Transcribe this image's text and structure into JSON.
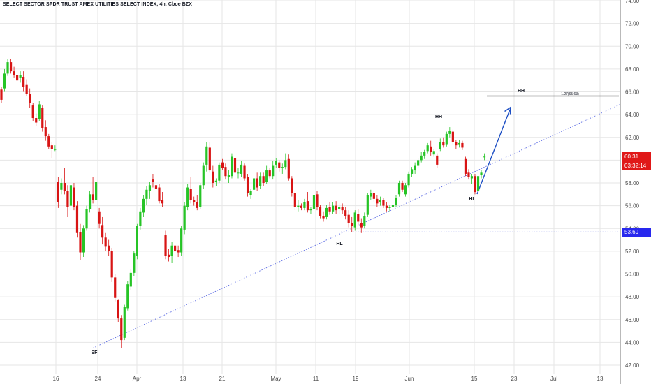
{
  "header": {
    "title": "SELECT SECTOR SPDR TRUST AMEX UTILITIES SELECT INDEX, 4h, Cboe BZX"
  },
  "price_axis": {
    "ticks": [
      "74.00",
      "72.00",
      "70.00",
      "68.00",
      "66.00",
      "64.00",
      "62.00",
      "60.00",
      "58.00",
      "56.00",
      "54.00",
      "52.00",
      "50.00",
      "48.00",
      "46.00",
      "44.00",
      "42.00"
    ]
  },
  "time_axis": {
    "ticks": [
      "16",
      "24",
      "Apr",
      "13",
      "21",
      "May",
      "11",
      "19",
      "Jun",
      "15",
      "23",
      "Jul",
      "13"
    ]
  },
  "badges": {
    "last_price": "60.31",
    "countdown": "03:32:14",
    "level": "53.69"
  },
  "annotations": {
    "sf": "SF",
    "hl_may": "HL",
    "hh_jun": "HH",
    "hl_jun": "HL",
    "hh_target": "HH",
    "fib": "1.27(65.63)"
  },
  "colors": {
    "up": "#26c426",
    "down": "#d81414",
    "badge_red": "#e01818",
    "badge_blue": "#2828ee",
    "trendline": "#4a5be0",
    "arrow": "#1d4fc4",
    "grid": "#e6e6e6"
  },
  "chart_data": {
    "type": "candlestick",
    "title": "SELECT SECTOR SPDR TRUST AMEX UTILITIES SELECT INDEX, 4h, Cboe BZX",
    "interval": "4h",
    "ylim": [
      41.5,
      74.8
    ],
    "price_ticks": [
      74,
      72,
      70,
      68,
      66,
      64,
      62,
      60,
      58,
      56,
      54,
      52,
      50,
      48,
      46,
      44,
      42
    ],
    "x_ticks": [
      "16",
      "24",
      "Apr",
      "13",
      "21",
      "May",
      "11",
      "19",
      "Jun",
      "15",
      "23",
      "Jul",
      "13"
    ],
    "candles": [
      [
        66.2,
        66.4,
        65.0,
        65.3
      ],
      [
        66.3,
        68.0,
        66.0,
        67.6
      ],
      [
        67.6,
        68.9,
        67.4,
        68.6
      ],
      [
        68.6,
        68.9,
        67.6,
        67.8
      ],
      [
        67.8,
        68.2,
        67.2,
        67.5
      ],
      [
        67.5,
        67.9,
        66.6,
        67.0
      ],
      [
        67.2,
        67.8,
        66.8,
        67.5
      ],
      [
        67.3,
        67.8,
        66.0,
        66.4
      ],
      [
        66.6,
        67.1,
        65.6,
        65.8
      ],
      [
        65.8,
        66.3,
        64.6,
        65.0
      ],
      [
        64.8,
        65.0,
        63.4,
        63.7
      ],
      [
        63.7,
        64.1,
        63.0,
        63.3
      ],
      [
        63.6,
        65.2,
        63.4,
        64.9
      ],
      [
        64.6,
        64.8,
        62.5,
        62.8
      ],
      [
        62.9,
        63.5,
        61.7,
        62.1
      ],
      [
        62.1,
        62.3,
        61.0,
        61.2
      ],
      [
        61.3,
        61.6,
        60.2,
        61.0
      ],
      [
        60.9,
        61.3,
        60.8,
        61.0
      ],
      [
        58.1,
        58.5,
        55.8,
        56.3
      ],
      [
        57.4,
        58.4,
        57.0,
        58.0
      ],
      [
        58.0,
        59.3,
        57.0,
        57.3
      ],
      [
        57.3,
        57.8,
        55.0,
        55.9
      ],
      [
        56.0,
        58.1,
        55.6,
        57.8
      ],
      [
        57.6,
        58.0,
        55.6,
        55.9
      ],
      [
        56.0,
        56.4,
        53.2,
        53.6
      ],
      [
        53.7,
        54.4,
        51.2,
        51.9
      ],
      [
        51.9,
        54.3,
        51.5,
        54.0
      ],
      [
        54.0,
        56.0,
        53.8,
        55.7
      ],
      [
        55.7,
        57.3,
        55.4,
        57.0
      ],
      [
        57.0,
        58.5,
        56.2,
        56.5
      ],
      [
        56.5,
        58.4,
        56.0,
        58.1
      ],
      [
        55.5,
        55.8,
        54.0,
        54.4
      ],
      [
        54.3,
        55.0,
        52.6,
        53.2
      ],
      [
        53.2,
        53.6,
        52.0,
        52.4
      ],
      [
        52.5,
        53.0,
        51.6,
        52.0
      ],
      [
        52.0,
        52.3,
        49.3,
        49.7
      ],
      [
        49.7,
        50.0,
        47.6,
        47.9
      ],
      [
        47.7,
        47.8,
        45.8,
        46.1
      ],
      [
        46.1,
        46.4,
        43.5,
        44.2
      ],
      [
        44.4,
        47.3,
        44.2,
        47.1
      ],
      [
        47.0,
        49.4,
        46.8,
        49.1
      ],
      [
        48.9,
        50.4,
        48.6,
        50.1
      ],
      [
        50.1,
        52.0,
        49.8,
        51.8
      ],
      [
        51.6,
        54.4,
        51.3,
        54.2
      ],
      [
        54.2,
        55.8,
        53.9,
        55.5
      ],
      [
        55.4,
        56.9,
        55.0,
        56.6
      ],
      [
        56.6,
        57.7,
        56.1,
        57.4
      ],
      [
        57.3,
        58.1,
        56.6,
        57.8
      ],
      [
        58.3,
        58.8,
        57.6,
        58.1
      ],
      [
        57.8,
        58.2,
        57.2,
        57.5
      ],
      [
        57.6,
        57.9,
        56.2,
        56.4
      ],
      [
        56.5,
        57.2,
        55.9,
        56.2
      ],
      [
        53.4,
        53.8,
        51.3,
        51.6
      ],
      [
        51.7,
        52.2,
        51.1,
        51.5
      ],
      [
        51.6,
        52.8,
        51.0,
        52.5
      ],
      [
        52.5,
        53.2,
        51.8,
        52.0
      ],
      [
        52.1,
        52.5,
        51.5,
        51.9
      ],
      [
        51.9,
        54.2,
        51.6,
        54.0
      ],
      [
        53.9,
        56.3,
        53.5,
        56.0
      ],
      [
        55.9,
        57.9,
        55.6,
        57.6
      ],
      [
        57.5,
        58.5,
        56.2,
        56.5
      ],
      [
        56.5,
        56.8,
        56.0,
        56.3
      ],
      [
        56.3,
        56.9,
        55.6,
        55.8
      ],
      [
        55.9,
        58.0,
        55.7,
        57.8
      ],
      [
        57.8,
        59.8,
        57.5,
        59.5
      ],
      [
        59.6,
        61.6,
        59.0,
        61.2
      ],
      [
        61.1,
        61.6,
        58.9,
        59.1
      ],
      [
        59.0,
        59.5,
        57.6,
        58.0
      ],
      [
        58.1,
        58.4,
        57.7,
        58.2
      ],
      [
        58.2,
        59.8,
        58.0,
        59.6
      ],
      [
        59.8,
        60.1,
        59.1,
        59.3
      ],
      [
        59.4,
        59.7,
        58.3,
        58.6
      ],
      [
        58.5,
        59.1,
        58.0,
        58.7
      ],
      [
        58.6,
        60.6,
        58.4,
        60.3
      ],
      [
        60.2,
        60.5,
        58.7,
        58.9
      ],
      [
        58.9,
        59.3,
        58.4,
        58.9
      ],
      [
        58.8,
        59.9,
        58.5,
        59.6
      ],
      [
        59.5,
        59.7,
        58.2,
        58.4
      ],
      [
        58.5,
        58.8,
        56.8,
        57.1
      ],
      [
        56.9,
        57.5,
        56.6,
        57.3
      ],
      [
        57.4,
        58.6,
        57.2,
        58.4
      ],
      [
        58.4,
        58.9,
        57.3,
        57.6
      ],
      [
        57.7,
        58.9,
        57.5,
        58.6
      ],
      [
        58.6,
        58.9,
        57.7,
        58.0
      ],
      [
        58.1,
        59.5,
        57.9,
        59.1
      ],
      [
        59.1,
        59.3,
        58.4,
        58.6
      ],
      [
        58.6,
        59.9,
        58.3,
        59.5
      ],
      [
        59.6,
        60.2,
        59.3,
        59.9
      ],
      [
        59.8,
        60.0,
        59.0,
        59.3
      ],
      [
        59.3,
        59.7,
        58.8,
        59.4
      ],
      [
        59.4,
        60.6,
        59.2,
        60.0
      ],
      [
        60.1,
        60.5,
        58.2,
        58.4
      ],
      [
        58.4,
        58.6,
        56.8,
        57.1
      ],
      [
        57.1,
        57.3,
        55.6,
        55.9
      ],
      [
        55.9,
        56.5,
        55.5,
        56.0
      ],
      [
        56.0,
        56.2,
        55.6,
        55.8
      ],
      [
        55.8,
        56.6,
        55.6,
        56.3
      ],
      [
        56.4,
        57.2,
        55.4,
        55.6
      ],
      [
        55.6,
        55.9,
        55.3,
        55.7
      ],
      [
        55.7,
        57.2,
        55.5,
        56.9
      ],
      [
        57.0,
        57.3,
        55.6,
        55.9
      ],
      [
        55.9,
        56.1,
        54.9,
        55.1
      ],
      [
        55.1,
        55.5,
        54.6,
        54.9
      ],
      [
        55.0,
        56.1,
        54.8,
        55.8
      ],
      [
        55.9,
        56.3,
        55.2,
        55.5
      ],
      [
        55.5,
        56.3,
        55.3,
        56.0
      ],
      [
        56.0,
        56.4,
        55.3,
        55.6
      ],
      [
        55.7,
        56.2,
        55.3,
        55.9
      ],
      [
        55.9,
        56.2,
        55.3,
        55.6
      ],
      [
        55.6,
        55.9,
        54.8,
        55.1
      ],
      [
        55.2,
        55.6,
        54.1,
        54.5
      ],
      [
        54.5,
        55.0,
        53.7,
        54.2
      ],
      [
        54.1,
        55.6,
        53.8,
        55.4
      ],
      [
        55.3,
        55.7,
        54.3,
        54.6
      ],
      [
        54.5,
        54.9,
        53.6,
        54.1
      ],
      [
        54.2,
        55.4,
        54.0,
        55.1
      ],
      [
        55.2,
        57.1,
        55.0,
        56.9
      ],
      [
        56.8,
        57.4,
        56.5,
        57.1
      ],
      [
        57.1,
        57.3,
        56.3,
        56.6
      ],
      [
        56.6,
        56.9,
        55.9,
        56.2
      ],
      [
        56.3,
        56.8,
        56.0,
        56.5
      ],
      [
        56.5,
        56.7,
        55.8,
        56.0
      ],
      [
        56.0,
        56.3,
        55.5,
        55.8
      ],
      [
        55.8,
        56.1,
        55.5,
        55.9
      ],
      [
        55.9,
        56.4,
        55.7,
        56.1
      ],
      [
        56.1,
        56.9,
        55.9,
        56.7
      ],
      [
        57.0,
        58.2,
        56.8,
        58.0
      ],
      [
        58.0,
        58.2,
        57.2,
        57.4
      ],
      [
        57.0,
        58.0,
        56.8,
        57.8
      ],
      [
        57.8,
        59.0,
        57.6,
        58.8
      ],
      [
        58.8,
        59.4,
        58.5,
        59.2
      ],
      [
        59.1,
        59.8,
        58.8,
        59.5
      ],
      [
        59.5,
        60.2,
        59.3,
        60.0
      ],
      [
        60.0,
        60.7,
        59.8,
        60.4
      ],
      [
        60.4,
        60.9,
        60.1,
        60.7
      ],
      [
        60.8,
        61.5,
        60.6,
        61.3
      ],
      [
        61.2,
        61.7,
        60.4,
        60.7
      ],
      [
        60.5,
        61.0,
        60.3,
        60.8
      ],
      [
        60.4,
        60.6,
        59.3,
        59.6
      ],
      [
        61.0,
        61.9,
        60.8,
        61.6
      ],
      [
        61.6,
        62.0,
        61.1,
        61.3
      ],
      [
        61.4,
        62.5,
        61.2,
        62.3
      ],
      [
        62.3,
        62.9,
        62.0,
        62.6
      ],
      [
        62.5,
        62.7,
        61.4,
        61.6
      ],
      [
        61.6,
        61.8,
        61.0,
        61.3
      ],
      [
        61.4,
        61.8,
        61.1,
        61.5
      ],
      [
        61.5,
        61.7,
        60.9,
        61.1
      ],
      [
        60.1,
        60.3,
        58.6,
        58.8
      ],
      [
        58.9,
        59.2,
        58.3,
        58.5
      ],
      [
        58.4,
        58.8,
        57.9,
        58.6
      ],
      [
        58.6,
        58.8,
        57.0,
        57.2
      ],
      [
        57.3,
        58.9,
        57.1,
        58.6
      ],
      [
        58.7,
        59.1,
        58.4,
        58.9
      ],
      [
        60.3,
        60.6,
        60.0,
        60.31
      ]
    ],
    "annotations": [
      {
        "text": "SF",
        "price": 43.5
      },
      {
        "text": "HL",
        "price": 53.7
      },
      {
        "text": "HH",
        "price": 62.9
      },
      {
        "text": "HL",
        "price": 57.1
      },
      {
        "text": "HH",
        "price": 65.63
      },
      {
        "text": "1.27(65.63)",
        "price": 65.63
      }
    ],
    "horizontal_levels": [
      {
        "price": 53.69,
        "style": "dotted"
      },
      {
        "price": 65.63,
        "style": "solid",
        "label": "1.27(65.63)"
      }
    ],
    "trendline": {
      "from_price": 43.5,
      "to_price": 64.9,
      "style": "dotted"
    },
    "last_price": 60.31,
    "grid": true,
    "price_axis_position": "right"
  }
}
